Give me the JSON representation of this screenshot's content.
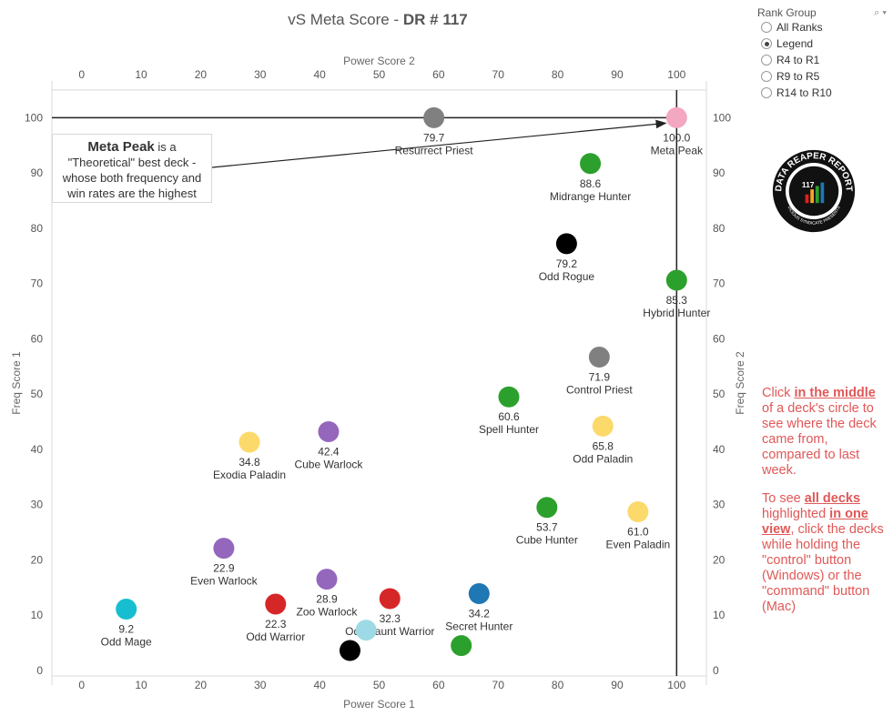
{
  "title": {
    "main": "vS Meta Score - ",
    "sub": "DR # 117"
  },
  "rank_group": {
    "label": "Rank Group",
    "options": [
      {
        "label": "All Ranks",
        "selected": false
      },
      {
        "label": "Legend",
        "selected": true
      },
      {
        "label": "R4 to R1",
        "selected": false
      },
      {
        "label": "R9 to R5",
        "selected": false
      },
      {
        "label": "R14 to R10",
        "selected": false
      }
    ]
  },
  "logo": {
    "text_top": "DATA REAPER REPORT",
    "text_bottom": "VICIOUS SYNDICATE PRESENTS",
    "badge": "117"
  },
  "annotation": {
    "title": "Meta Peak",
    "text1": " is a",
    "text2": "\"Theoretical\" best deck -",
    "text3": "whose both frequency and",
    "text4": "win rates are the highest"
  },
  "help": {
    "p1_a": "Click ",
    "p1_b": "in the middle",
    "p1_c": " of a deck's circle to see where the deck came from, compared to last week.",
    "p2_a": "To see ",
    "p2_b": "all decks",
    "p2_c": " highlighted ",
    "p2_d": "in one view",
    "p2_e": ", click the decks while holding the \"control\" button (Windows) or the \"command\" button (Mac)"
  },
  "chart_data": {
    "type": "scatter",
    "xlabel": "Power Score 1",
    "x2label": "Power Score 2",
    "ylabel": "Freq Score 1",
    "y2label": "Freq Score 2",
    "xlim": [
      -5,
      105
    ],
    "ylim": [
      -1,
      105
    ],
    "xticks": [
      0,
      10,
      20,
      30,
      40,
      50,
      60,
      70,
      80,
      90,
      100
    ],
    "yticks": [
      0,
      10,
      20,
      30,
      40,
      50,
      60,
      70,
      80,
      90,
      100
    ],
    "points": [
      {
        "name": "Meta Peak",
        "score": "100.0",
        "x": 100,
        "y": 100,
        "color": "#f4a7c0"
      },
      {
        "name": "Resurrect Priest",
        "score": "79.7",
        "x": 59.2,
        "y": 100,
        "color": "#808080"
      },
      {
        "name": "Midrange Hunter",
        "score": "88.6",
        "x": 85.5,
        "y": 91.7,
        "color": "#2ca02c"
      },
      {
        "name": "Odd Rogue",
        "score": "79.2",
        "x": 81.5,
        "y": 77.2,
        "color": "#000000"
      },
      {
        "name": "Hybrid Hunter",
        "score": "85.3",
        "x": 100,
        "y": 70.6,
        "color": "#2ca02c"
      },
      {
        "name": "Control Priest",
        "score": "71.9",
        "x": 87,
        "y": 56.7,
        "color": "#808080"
      },
      {
        "name": "Spell Hunter",
        "score": "60.6",
        "x": 71.8,
        "y": 49.5,
        "color": "#2ca02c"
      },
      {
        "name": "Odd Paladin",
        "score": "65.8",
        "x": 87.6,
        "y": 44.2,
        "color": "#fcd96b"
      },
      {
        "name": "Exodia Paladin",
        "score": "34.8",
        "x": 28.2,
        "y": 41.3,
        "color": "#fcd96b"
      },
      {
        "name": "Cube Warlock",
        "score": "42.4",
        "x": 41.5,
        "y": 43.2,
        "color": "#9467bd"
      },
      {
        "name": "Cube Hunter",
        "score": "53.7",
        "x": 78.2,
        "y": 29.5,
        "color": "#2ca02c"
      },
      {
        "name": "Even Paladin",
        "score": "61.0",
        "x": 93.5,
        "y": 28.7,
        "color": "#fcd96b"
      },
      {
        "name": "Even Warlock",
        "score": "22.9",
        "x": 23.9,
        "y": 22.1,
        "color": "#9467bd"
      },
      {
        "name": "Zoo Warlock",
        "score": "28.9",
        "x": 41.2,
        "y": 16.5,
        "color": "#9467bd"
      },
      {
        "name": "Odd-Taunt Warrior",
        "score": "32.3",
        "x": 51.8,
        "y": 13,
        "color": "#d62728"
      },
      {
        "name": "Odd Warrior",
        "score": "22.3",
        "x": 32.6,
        "y": 12,
        "color": "#d62728"
      },
      {
        "name": "Secret Hunter",
        "score": "34.2",
        "x": 66.8,
        "y": 13.9,
        "color": "#1f77b4"
      },
      {
        "name": "Odd Mage",
        "score": "9.2",
        "x": 7.5,
        "y": 11.1,
        "color": "#17becf"
      },
      {
        "name": "",
        "score": "",
        "x": 47.8,
        "y": 7.3,
        "color": "#9edae5"
      },
      {
        "name": "",
        "score": "",
        "x": 45.1,
        "y": 3.6,
        "color": "#000000"
      },
      {
        "name": "",
        "score": "",
        "x": 63.8,
        "y": 4.5,
        "color": "#2ca02c"
      }
    ]
  }
}
